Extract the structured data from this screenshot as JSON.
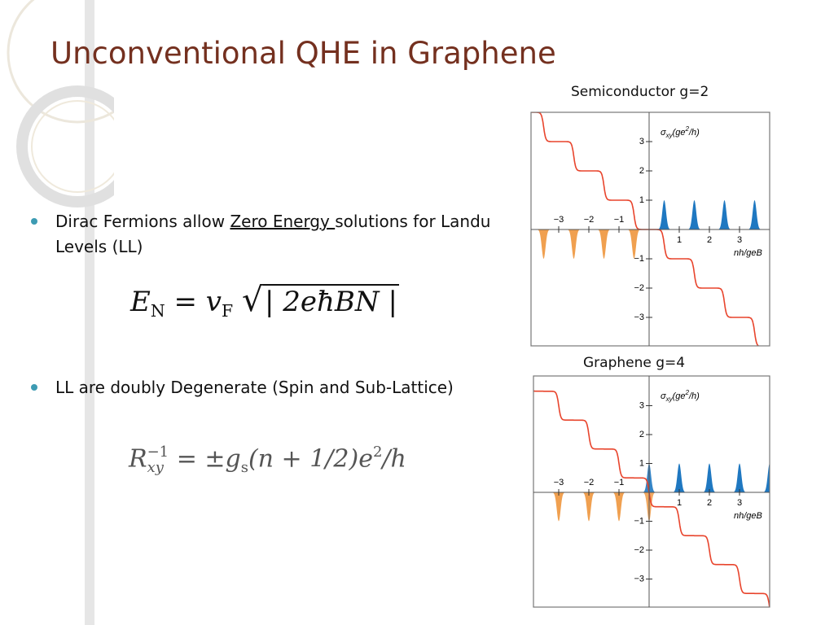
{
  "title": "Unconventional QHE in Graphene",
  "bullets": [
    {
      "before": "Dirac Fermions allow ",
      "underlined": "Zero Energy ",
      "after": "solutions for Landu Levels (LL)"
    },
    {
      "text": "LL are doubly Degenerate (Spin and Sub-Lattice)"
    }
  ],
  "equations": [
    {
      "parts": [
        "E",
        "N",
        "=",
        "v",
        "F",
        "√",
        "| 2eħBN |"
      ]
    },
    {
      "parts": [
        "R",
        "xy",
        "−1",
        "=",
        "±g",
        "s",
        "(n + 1/2)e",
        "2",
        "/h"
      ]
    }
  ],
  "figures": [
    {
      "caption": "Semiconductor g=2",
      "kind": "semiconductor",
      "y_label": [
        "σ",
        "xy",
        "(ge",
        "2",
        "/h)"
      ],
      "x_label": "nh/geB",
      "y_ticks": [
        "3",
        "2",
        "1",
        "−1",
        "−2",
        "−3"
      ],
      "x_ticks": [
        "−3",
        "−2",
        "−1",
        "1",
        "2",
        "3"
      ]
    },
    {
      "caption": "Graphene g=4",
      "kind": "graphene",
      "y_label": [
        "σ",
        "xy",
        "(ge",
        "2",
        "/h)"
      ],
      "x_label": "nh/geB",
      "y_ticks": [
        "3",
        "2",
        "1",
        "−1",
        "−2",
        "−3"
      ],
      "x_ticks": [
        "−3",
        "−2",
        "−1",
        "1",
        "2",
        "3"
      ]
    }
  ]
}
